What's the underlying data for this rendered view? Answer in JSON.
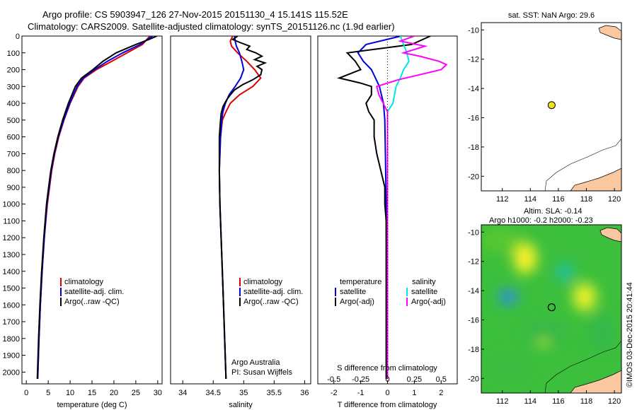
{
  "header": {
    "line1": "Argo profile: CS 5903947_126 27-Nov-2015 20151130_4 15.141S 115.52E",
    "line2": "Climatology: CARS2009. Satellite-adjusted climatology: synTS_20151126.nc (1.9d earlier)"
  },
  "credit": "©IMOS 03-Dec-2015 20:41:44",
  "colors": {
    "climatology": "#e00000",
    "satellite": "#0000e0",
    "argo": "#000000",
    "satellite_salinity": "#00e5e5",
    "argo_salinity": "#ff00ff",
    "land": "#f9c8a0",
    "sst_marker": "#f2e020"
  },
  "chart_data": [
    {
      "type": "line",
      "id": "temperature",
      "xlabel": "temperature (deg C)",
      "xlim": [
        -1,
        31
      ],
      "ylim": [
        2070,
        0
      ],
      "xticks": [
        0,
        5,
        10,
        15,
        20,
        25,
        30
      ],
      "yticks": [
        0,
        100,
        200,
        300,
        400,
        500,
        600,
        700,
        800,
        900,
        1000,
        1100,
        1200,
        1300,
        1400,
        1500,
        1600,
        1700,
        1800,
        1900,
        2000
      ],
      "legend": [
        "climatology",
        "satellite-adj. clim.",
        "Argo(..raw -QC)"
      ],
      "series": [
        {
          "name": "climatology",
          "depth": [
            0,
            50,
            100,
            150,
            200,
            250,
            300,
            400,
            500,
            600,
            700,
            800,
            900,
            1000,
            1200,
            1400,
            1600,
            1800,
            2040
          ],
          "values": [
            28.2,
            26.5,
            23.0,
            19.5,
            16.0,
            13.2,
            11.8,
            10.0,
            8.6,
            7.4,
            6.5,
            5.8,
            5.3,
            4.8,
            4.1,
            3.6,
            3.2,
            2.9,
            2.6
          ]
        },
        {
          "name": "satellite-adj. clim.",
          "depth": [
            0,
            50,
            100,
            150,
            200,
            250,
            300,
            400,
            500,
            600,
            700,
            800,
            900,
            1000,
            1200,
            1400,
            1600,
            1800,
            2040
          ],
          "values": [
            28.8,
            26.0,
            22.0,
            18.5,
            15.6,
            13.0,
            11.6,
            9.9,
            8.5,
            7.3,
            6.4,
            5.7,
            5.2,
            4.7,
            4.1,
            3.6,
            3.2,
            2.9,
            2.6
          ]
        },
        {
          "name": "Argo(..raw -QC)",
          "depth": [
            0,
            20,
            50,
            100,
            150,
            200,
            250,
            300,
            400,
            500,
            600,
            700,
            800,
            900,
            1000,
            1200,
            1400,
            1600,
            1800,
            2040
          ],
          "values": [
            29.8,
            28.0,
            25.0,
            20.5,
            17.5,
            15.2,
            12.6,
            11.2,
            9.6,
            8.3,
            7.2,
            6.3,
            5.6,
            5.1,
            4.6,
            4.0,
            3.5,
            3.1,
            2.8,
            2.5
          ]
        }
      ]
    },
    {
      "type": "line",
      "id": "salinity",
      "xlabel": "salinity",
      "xlim": [
        33.8,
        36.1
      ],
      "ylim": [
        2070,
        0
      ],
      "xticks": [
        34,
        34.5,
        35,
        35.5,
        36
      ],
      "legend": [
        "climatology",
        "satellite-adj. clim.",
        "Argo(..raw -QC)"
      ],
      "annotation": [
        "Argo Australia",
        "PI: Susan Wijffels"
      ],
      "series": [
        {
          "name": "climatology",
          "depth": [
            0,
            30,
            60,
            100,
            150,
            200,
            250,
            300,
            350,
            400,
            450,
            500,
            600,
            800,
            1000,
            1500,
            2040
          ],
          "values": [
            34.82,
            34.78,
            34.8,
            34.9,
            35.05,
            35.18,
            35.28,
            35.15,
            34.93,
            34.78,
            34.71,
            34.65,
            34.62,
            34.6,
            34.61,
            34.66,
            34.71
          ]
        },
        {
          "name": "satellite-adj. clim.",
          "depth": [
            0,
            30,
            60,
            100,
            150,
            200,
            250,
            300,
            350,
            400,
            450,
            500,
            600,
            800,
            1000,
            1500,
            2040
          ],
          "values": [
            34.85,
            34.86,
            34.88,
            34.93,
            34.97,
            35.0,
            34.95,
            34.86,
            34.76,
            34.7,
            34.66,
            34.64,
            34.62,
            34.6,
            34.61,
            34.66,
            34.71
          ]
        },
        {
          "name": "Argo(..raw -QC)",
          "depth": [
            0,
            20,
            40,
            60,
            80,
            100,
            120,
            140,
            160,
            180,
            200,
            230,
            260,
            290,
            320,
            350,
            380,
            420,
            460,
            500,
            600,
            800,
            1000,
            1500,
            2040
          ],
          "values": [
            34.9,
            34.82,
            34.95,
            35.1,
            35.05,
            35.2,
            35.3,
            35.18,
            35.35,
            35.22,
            35.3,
            35.28,
            35.15,
            34.98,
            34.85,
            34.78,
            34.72,
            34.66,
            34.63,
            34.62,
            34.6,
            34.6,
            34.61,
            34.66,
            34.71
          ]
        }
      ]
    },
    {
      "type": "line",
      "id": "difference",
      "xlabel": "T difference from climatology",
      "xlabel_top": "S difference from climatology",
      "xlim": [
        -2.6,
        2.6
      ],
      "ylim": [
        2070,
        0
      ],
      "xticks": [
        -2,
        -1,
        0,
        1,
        2
      ],
      "xticks_s": [
        -0.5,
        -0.25,
        0,
        0.25,
        0.5
      ],
      "legend_temperature": [
        "temperature",
        "satellite",
        "Argo(-adj)"
      ],
      "legend_salinity": [
        "salinity",
        "satellite",
        "Argo(-adj)"
      ],
      "series": [
        {
          "name": "temperature satellite",
          "depth": [
            0,
            50,
            100,
            150,
            200,
            300,
            400,
            500,
            700,
            1000,
            1500,
            2040
          ],
          "values": [
            0.5,
            -0.8,
            -1.1,
            -0.9,
            -0.6,
            -0.3,
            -0.15,
            -0.1,
            -0.08,
            -0.05,
            -0.03,
            -0.02
          ]
        },
        {
          "name": "temperature Argo(-adj)",
          "depth": [
            0,
            50,
            100,
            150,
            200,
            250,
            280,
            300,
            350,
            400,
            450,
            500,
            600,
            700,
            800,
            900,
            1000,
            1100,
            1500,
            2040
          ],
          "values": [
            1.6,
            0.9,
            -1.5,
            -1.2,
            -1.0,
            -1.8,
            -1.0,
            -0.6,
            -0.6,
            -0.8,
            -0.7,
            -0.5,
            -0.5,
            -0.4,
            -0.25,
            -0.1,
            -0.1,
            -0.05,
            -0.05,
            -0.05
          ]
        },
        {
          "name": "salinity satellite",
          "depth": [
            0,
            50,
            100,
            150,
            200,
            250,
            300,
            400,
            450,
            500,
            700,
            1000,
            1500,
            2040
          ],
          "values": [
            0.12,
            0.15,
            0.18,
            0.2,
            0.15,
            0.12,
            0.08,
            0.05,
            0.0,
            0.0,
            0.0,
            0.0,
            0.0,
            0.0
          ]
        },
        {
          "name": "salinity Argo(-adj)",
          "depth": [
            0,
            30,
            60,
            100,
            120,
            150,
            170,
            200,
            230,
            260,
            300,
            350,
            400,
            450,
            500,
            700,
            1000,
            1500,
            2040
          ],
          "values": [
            0.25,
            0.12,
            0.35,
            0.15,
            0.3,
            0.48,
            0.55,
            0.5,
            0.3,
            0.1,
            -0.1,
            -0.08,
            -0.04,
            0.0,
            0.0,
            0.0,
            0.0,
            0.0,
            0.0
          ]
        }
      ]
    },
    {
      "type": "scatter",
      "id": "sst-map",
      "title": "sat. SST: NaN Argo: 29.6",
      "xlim": [
        110.5,
        120.5
      ],
      "ylim": [
        -21,
        -9.5
      ],
      "xticks": [
        112,
        114,
        116,
        118,
        120
      ],
      "yticks": [
        -10,
        -12,
        -14,
        -16,
        -18,
        -20
      ],
      "point": {
        "lon": 115.52,
        "lat": -15.141
      }
    },
    {
      "type": "heatmap",
      "id": "sla-map",
      "title_line1": "Altim. SLA: -0.14",
      "title_line2": "Argo h1000: -0.2 h2000: -0.23",
      "xlim": [
        110.5,
        120.5
      ],
      "ylim": [
        -21,
        -9.5
      ],
      "xticks": [
        112,
        114,
        116,
        118,
        120
      ],
      "yticks": [
        -10,
        -12,
        -14,
        -16,
        -18,
        -20
      ],
      "point": {
        "lon": 115.52,
        "lat": -15.141
      }
    }
  ]
}
